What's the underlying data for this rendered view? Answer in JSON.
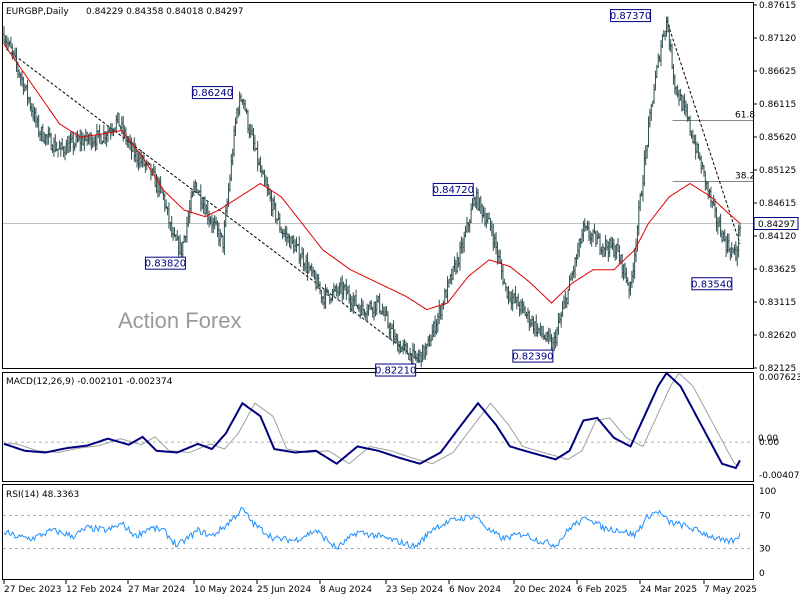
{
  "header": {
    "symbol": "EURGBP,Daily",
    "ohlc": "0.84229 0.84358 0.84018 0.84297"
  },
  "watermark": "Action Forex",
  "price_axis": {
    "ticks": [
      "0.87615",
      "0.87120",
      "0.86625",
      "0.86115",
      "0.85620",
      "0.85125",
      "0.84615",
      "0.84120",
      "0.83625",
      "0.83115",
      "0.82620",
      "0.82125"
    ],
    "current": "0.84297"
  },
  "date_axis": [
    "27 Dec 2023",
    "12 Feb 2024",
    "27 Mar 2024",
    "10 May 2024",
    "25 Jun 2024",
    "8 Aug 2024",
    "23 Sep 2024",
    "6 Nov 2024",
    "20 Dec 2024",
    "6 Feb 2025",
    "24 Mar 2025",
    "7 May 2025"
  ],
  "annotations": [
    "0.87370",
    "0.86240",
    "0.83820",
    "0.84720",
    "0.82210",
    "0.82390",
    "0.83540"
  ],
  "fib": [
    "61.8",
    "38.2"
  ],
  "macd": {
    "title": "MACD(12,26,9) -0.002101 -0.002374",
    "ticks": [
      "0.007623",
      "0.00",
      "-0.004073"
    ],
    "zero_tag": "0.00"
  },
  "rsi": {
    "title": "RSI(14) 48.3363",
    "ticks": [
      "100",
      "70",
      "30",
      "0"
    ]
  },
  "colors": {
    "bars": "#2f4f4f",
    "ma": "#e00000",
    "macd": "#000080",
    "signal": "#a0a0a0",
    "rsi": "#1e90ff",
    "label": "#000080"
  },
  "chart_data": {
    "type": "ohlc",
    "title": "EURGBP,Daily",
    "ylim": [
      0.8212,
      0.8762
    ],
    "x": [
      "27 Dec 2023",
      "12 Feb 2024",
      "27 Mar 2024",
      "10 May 2024",
      "25 Jun 2024",
      "8 Aug 2024",
      "23 Sep 2024",
      "6 Nov 2024",
      "20 Dec 2024",
      "6 Feb 2025",
      "24 Mar 2025",
      "7 May 2025"
    ],
    "price_knots": [
      [
        0,
        0.8715
      ],
      [
        5,
        0.869
      ],
      [
        15,
        0.8635
      ],
      [
        25,
        0.857
      ],
      [
        40,
        0.854
      ],
      [
        55,
        0.8555
      ],
      [
        70,
        0.856
      ],
      [
        82,
        0.8585
      ],
      [
        92,
        0.854
      ],
      [
        105,
        0.851
      ],
      [
        115,
        0.847
      ],
      [
        122,
        0.8405
      ],
      [
        128,
        0.839
      ],
      [
        138,
        0.849
      ],
      [
        148,
        0.844
      ],
      [
        158,
        0.84
      ],
      [
        168,
        0.86
      ],
      [
        172,
        0.8624
      ],
      [
        176,
        0.858
      ],
      [
        186,
        0.85
      ],
      [
        200,
        0.842
      ],
      [
        215,
        0.838
      ],
      [
        230,
        0.832
      ],
      [
        245,
        0.833
      ],
      [
        258,
        0.83
      ],
      [
        270,
        0.831
      ],
      [
        283,
        0.825
      ],
      [
        297,
        0.8225
      ],
      [
        305,
        0.824
      ],
      [
        318,
        0.832
      ],
      [
        330,
        0.839
      ],
      [
        340,
        0.847
      ],
      [
        352,
        0.842
      ],
      [
        362,
        0.833
      ],
      [
        374,
        0.83
      ],
      [
        385,
        0.827
      ],
      [
        396,
        0.8245
      ],
      [
        406,
        0.832
      ],
      [
        418,
        0.842
      ],
      [
        430,
        0.84
      ],
      [
        442,
        0.839
      ],
      [
        452,
        0.833
      ],
      [
        462,
        0.852
      ],
      [
        468,
        0.862
      ],
      [
        474,
        0.87
      ],
      [
        478,
        0.8737
      ],
      [
        484,
        0.864
      ],
      [
        494,
        0.858
      ],
      [
        504,
        0.851
      ],
      [
        513,
        0.844
      ],
      [
        521,
        0.84
      ],
      [
        528,
        0.838
      ],
      [
        531,
        0.8429
      ]
    ],
    "ma_knots": [
      [
        0,
        0.87
      ],
      [
        20,
        0.864
      ],
      [
        40,
        0.858
      ],
      [
        55,
        0.856
      ],
      [
        72,
        0.8565
      ],
      [
        85,
        0.857
      ],
      [
        100,
        0.853
      ],
      [
        115,
        0.848
      ],
      [
        130,
        0.845
      ],
      [
        145,
        0.844
      ],
      [
        155,
        0.845
      ],
      [
        170,
        0.847
      ],
      [
        185,
        0.849
      ],
      [
        200,
        0.847
      ],
      [
        215,
        0.843
      ],
      [
        230,
        0.839
      ],
      [
        250,
        0.836
      ],
      [
        270,
        0.834
      ],
      [
        290,
        0.832
      ],
      [
        305,
        0.83
      ],
      [
        320,
        0.831
      ],
      [
        335,
        0.835
      ],
      [
        350,
        0.8375
      ],
      [
        365,
        0.8365
      ],
      [
        380,
        0.834
      ],
      [
        395,
        0.831
      ],
      [
        410,
        0.834
      ],
      [
        425,
        0.836
      ],
      [
        440,
        0.836
      ],
      [
        455,
        0.839
      ],
      [
        465,
        0.843
      ],
      [
        480,
        0.847
      ],
      [
        495,
        0.849
      ],
      [
        510,
        0.847
      ],
      [
        520,
        0.845
      ],
      [
        531,
        0.843
      ]
    ],
    "trendlines": [
      {
        "from": [
          2,
          0.8692
        ],
        "to": [
          300,
          0.8222
        ]
      },
      {
        "from": [
          478,
          0.8737
        ],
        "to": [
          531,
          0.8399
        ]
      }
    ],
    "fib_levels": [
      {
        "label": "61.8",
        "value": 0.8585
      },
      {
        "label": "38.2",
        "value": 0.8493
      }
    ],
    "current_price": 0.84297,
    "swing_labels": [
      {
        "text": "0.87370",
        "i": 478,
        "value": 0.8737
      },
      {
        "text": "0.86240",
        "i": 172,
        "value": 0.8624
      },
      {
        "text": "0.83820",
        "i": 128,
        "value": 0.8382
      },
      {
        "text": "0.84720",
        "i": 340,
        "value": 0.8472
      },
      {
        "text": "0.82210",
        "i": 297,
        "value": 0.8221
      },
      {
        "text": "0.82390",
        "i": 396,
        "value": 0.8239
      },
      {
        "text": "0.83540",
        "i": 528,
        "value": 0.8354
      }
    ],
    "macd": {
      "ylim": [
        -0.0045,
        0.008
      ],
      "knots": [
        [
          0,
          -0.0002
        ],
        [
          15,
          -0.001
        ],
        [
          30,
          -0.0012
        ],
        [
          45,
          -0.0007
        ],
        [
          60,
          -0.0004
        ],
        [
          75,
          0.0004
        ],
        [
          90,
          -0.0003
        ],
        [
          100,
          0.0006
        ],
        [
          110,
          -0.001
        ],
        [
          125,
          -0.0012
        ],
        [
          140,
          -0.0002
        ],
        [
          150,
          -0.0008
        ],
        [
          160,
          0.001
        ],
        [
          172,
          0.0045
        ],
        [
          185,
          0.003
        ],
        [
          195,
          -0.0008
        ],
        [
          210,
          -0.0012
        ],
        [
          225,
          -0.001
        ],
        [
          240,
          -0.0025
        ],
        [
          255,
          -0.0005
        ],
        [
          270,
          -0.001
        ],
        [
          285,
          -0.0018
        ],
        [
          300,
          -0.0025
        ],
        [
          315,
          -0.0012
        ],
        [
          330,
          0.002
        ],
        [
          342,
          0.0045
        ],
        [
          355,
          0.002
        ],
        [
          365,
          -0.0005
        ],
        [
          380,
          -0.0012
        ],
        [
          398,
          -0.002
        ],
        [
          408,
          -0.001
        ],
        [
          418,
          0.0025
        ],
        [
          428,
          0.0028
        ],
        [
          440,
          0.0005
        ],
        [
          452,
          -0.0005
        ],
        [
          462,
          0.003
        ],
        [
          472,
          0.0065
        ],
        [
          478,
          0.008
        ],
        [
          488,
          0.0065
        ],
        [
          498,
          0.0035
        ],
        [
          508,
          0.0005
        ],
        [
          518,
          -0.0025
        ],
        [
          528,
          -0.003
        ],
        [
          531,
          -0.0021
        ]
      ],
      "signal_lag": 9
    },
    "rsi": {
      "ylim": [
        0,
        100
      ],
      "levels": [
        70,
        30
      ],
      "knots": [
        [
          0,
          50
        ],
        [
          10,
          44
        ],
        [
          20,
          42
        ],
        [
          35,
          52
        ],
        [
          50,
          45
        ],
        [
          60,
          55
        ],
        [
          75,
          52
        ],
        [
          85,
          60
        ],
        [
          95,
          45
        ],
        [
          105,
          55
        ],
        [
          115,
          52
        ],
        [
          125,
          33
        ],
        [
          140,
          52
        ],
        [
          150,
          45
        ],
        [
          160,
          58
        ],
        [
          172,
          78
        ],
        [
          180,
          60
        ],
        [
          195,
          42
        ],
        [
          210,
          40
        ],
        [
          225,
          52
        ],
        [
          240,
          30
        ],
        [
          255,
          50
        ],
        [
          270,
          45
        ],
        [
          285,
          38
        ],
        [
          297,
          32
        ],
        [
          310,
          55
        ],
        [
          325,
          65
        ],
        [
          340,
          70
        ],
        [
          350,
          52
        ],
        [
          360,
          42
        ],
        [
          375,
          48
        ],
        [
          385,
          40
        ],
        [
          398,
          34
        ],
        [
          410,
          58
        ],
        [
          422,
          68
        ],
        [
          432,
          55
        ],
        [
          445,
          52
        ],
        [
          455,
          46
        ],
        [
          465,
          70
        ],
        [
          472,
          75
        ],
        [
          480,
          62
        ],
        [
          490,
          58
        ],
        [
          500,
          52
        ],
        [
          510,
          45
        ],
        [
          520,
          38
        ],
        [
          528,
          40
        ],
        [
          531,
          48
        ]
      ]
    }
  }
}
